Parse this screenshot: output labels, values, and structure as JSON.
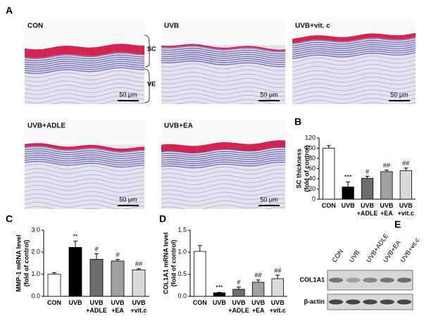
{
  "panel_labels": [
    "A",
    "B",
    "C",
    "D",
    "E"
  ],
  "histology": [
    {
      "label": "CON",
      "scale_bar": "50 μm"
    },
    {
      "label": "UVB",
      "scale_bar": "50 μm"
    },
    {
      "label": "UVB+vit. c",
      "scale_bar": "50 μm"
    },
    {
      "label": "UVB+ADLE",
      "scale_bar": "50 μm"
    },
    {
      "label": "UVB+EA",
      "scale_bar": "50 μm"
    }
  ],
  "layer_labels": [
    "SC",
    "VE"
  ],
  "blot": {
    "lanes": [
      "CON",
      "UVB",
      "UVB+ADLE",
      "UVB+EA",
      "UVB+vit.c"
    ],
    "bands": [
      "COL1A1",
      "β-actin"
    ]
  },
  "chart_data": [
    {
      "type": "bar",
      "y_label": [
        "SC thickness",
        "(fold of control)"
      ],
      "categories": [
        "CON",
        "UVB",
        "UVB\n+ADLE",
        "UVB\n+EA",
        "UVB\n+vit.c"
      ],
      "values": [
        100,
        24,
        41,
        54,
        56
      ],
      "errors": [
        5,
        10,
        4,
        3,
        5
      ],
      "annotations": [
        null,
        "***",
        "#",
        "##",
        "##"
      ],
      "colors": [
        "#ffffff",
        "#000000",
        "#6e6e6e",
        "#a0a0a0",
        "#dadada"
      ],
      "ylim": [
        0,
        120
      ],
      "yticks": [
        0,
        20,
        40,
        60,
        80,
        100,
        120
      ]
    },
    {
      "type": "bar",
      "y_label": [
        "MMP-1 mRNA level",
        "(fold of control)"
      ],
      "categories": [
        "CON",
        "UVB",
        "UVB\n+ADLE",
        "UVB\n+EA",
        "UVB\n+vit.c"
      ],
      "values": [
        1.0,
        2.22,
        1.68,
        1.6,
        1.2
      ],
      "errors": [
        0.07,
        0.28,
        0.25,
        0.07,
        0.05
      ],
      "annotations": [
        null,
        "**",
        "#",
        "#",
        "##"
      ],
      "colors": [
        "#ffffff",
        "#000000",
        "#6e6e6e",
        "#a0a0a0",
        "#dadada"
      ],
      "ylim": [
        0,
        3
      ],
      "yticks": [
        {
          "value": 0,
          "label": "0.0"
        },
        {
          "value": 1,
          "label": "1.0"
        },
        {
          "value": 2,
          "label": "2.0"
        },
        {
          "value": 3,
          "label": "3.0"
        }
      ]
    },
    {
      "type": "bar",
      "y_label": [
        "COL1A1 mRNA level",
        "(fold of control)"
      ],
      "categories": [
        "CON",
        "UVB",
        "UVB\n+ADLE",
        "UVB\n+EA",
        "UVB\n+vit.c"
      ],
      "values": [
        1.02,
        0.08,
        0.16,
        0.32,
        0.4
      ],
      "errors": [
        0.13,
        0.01,
        0.05,
        0.05,
        0.08
      ],
      "annotations": [
        null,
        "***",
        "#",
        "##",
        "##"
      ],
      "colors": [
        "#ffffff",
        "#000000",
        "#6e6e6e",
        "#a0a0a0",
        "#dadada"
      ],
      "ylim": [
        0,
        1.5
      ],
      "yticks": [
        {
          "value": 0,
          "label": "0.0"
        },
        0.5,
        {
          "value": 1,
          "label": "1.0"
        },
        1.5
      ]
    }
  ]
}
